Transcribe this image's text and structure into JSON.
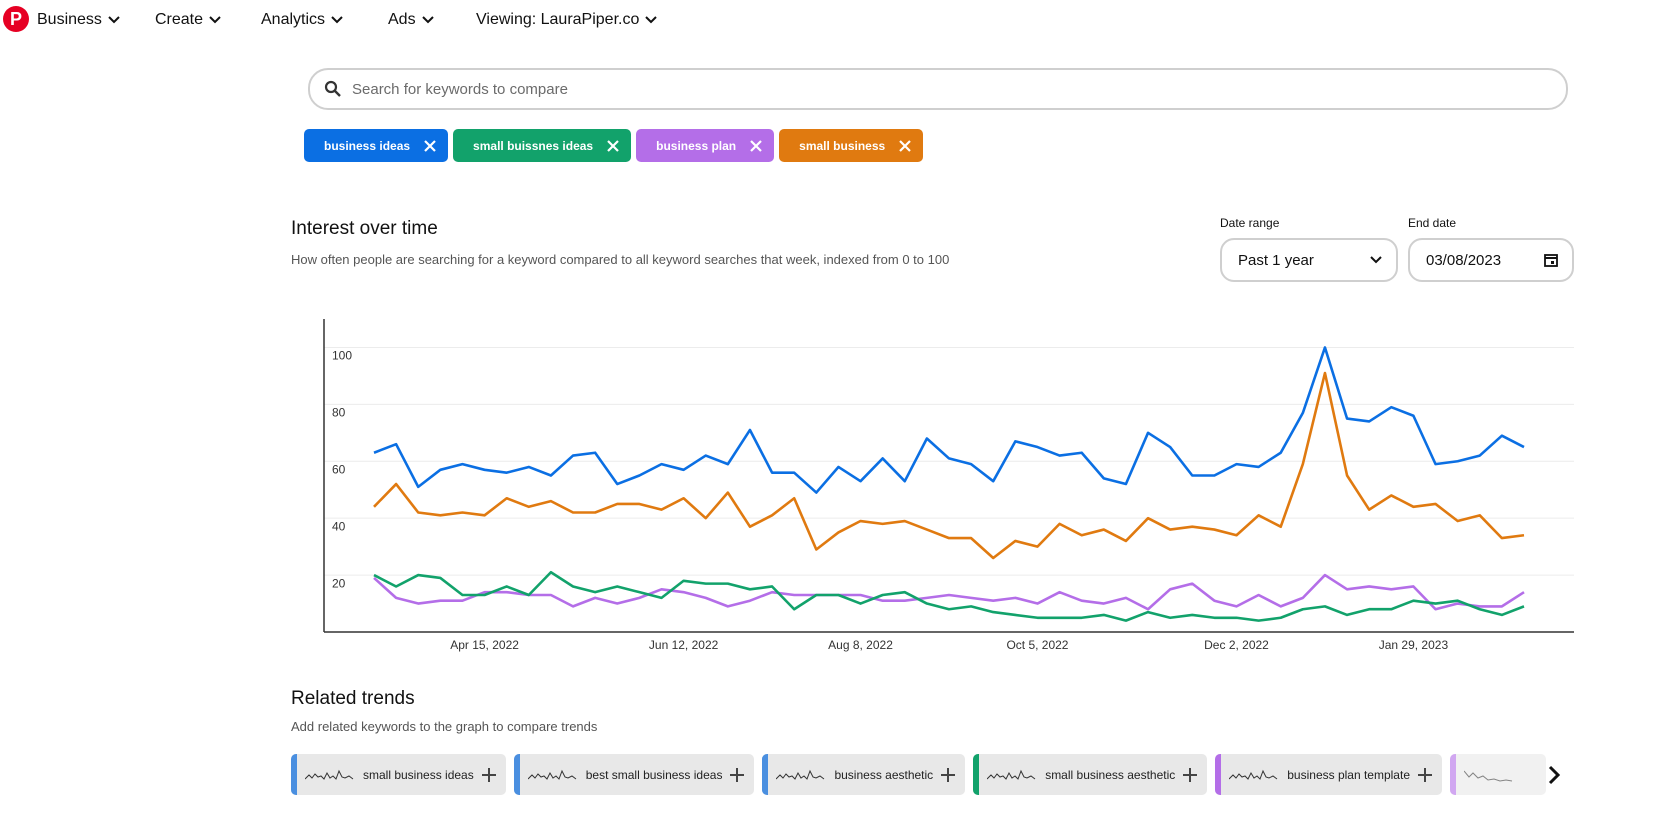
{
  "nav": {
    "items": [
      "Business",
      "Create",
      "Analytics",
      "Ads",
      "Viewing: LauraPiper.co"
    ]
  },
  "search": {
    "placeholder": "Search for keywords to compare"
  },
  "controls": {
    "date_range_label": "Date range",
    "date_range_value": "Past 1 year",
    "end_date_label": "End date",
    "end_date_value": "03/08/2023"
  },
  "chart_data": {
    "type": "line",
    "title": "Interest over time",
    "subtitle": "How often people are searching for a keyword compared to all keyword searches that week, indexed from 0 to 100",
    "categories": [
      null,
      null,
      null,
      null,
      null,
      "Apr 15, 2022",
      null,
      null,
      null,
      null,
      null,
      null,
      null,
      null,
      "Jun 12, 2022",
      null,
      null,
      null,
      null,
      null,
      null,
      null,
      "Aug 8, 2022",
      null,
      null,
      null,
      null,
      null,
      null,
      null,
      "Oct 5, 2022",
      null,
      null,
      null,
      null,
      null,
      null,
      null,
      null,
      "Dec 2, 2022",
      null,
      null,
      null,
      null,
      null,
      null,
      null,
      "Jan 29, 2023",
      null,
      null,
      null,
      null,
      null
    ],
    "ylim": [
      0,
      110
    ],
    "yticks": [
      20,
      40,
      60,
      80,
      100
    ],
    "grid": true,
    "series": [
      {
        "name": "business ideas",
        "color": "#0b6fe3",
        "values": [
          63,
          66,
          51,
          57,
          59,
          57,
          56,
          58,
          55,
          62,
          63,
          52,
          55,
          59,
          57,
          62,
          59,
          71,
          56,
          56,
          49,
          58,
          53,
          61,
          53,
          68,
          61,
          59,
          53,
          67,
          65,
          62,
          63,
          54,
          52,
          70,
          65,
          55,
          55,
          59,
          58,
          63,
          77,
          100,
          75,
          74,
          79,
          76,
          59,
          60,
          62,
          69,
          65
        ]
      },
      {
        "name": "small buissnes ideas",
        "color": "#12a26b",
        "values": [
          20,
          16,
          20,
          19,
          13,
          13,
          16,
          13,
          21,
          16,
          14,
          16,
          14,
          12,
          18,
          17,
          17,
          15,
          16,
          8,
          13,
          13,
          10,
          13,
          14,
          10,
          8,
          9,
          7,
          6,
          5,
          5,
          5,
          6,
          4,
          7,
          5,
          6,
          5,
          5,
          4,
          5,
          8,
          9,
          6,
          8,
          8,
          11,
          10,
          11,
          8,
          6,
          9
        ]
      },
      {
        "name": "business plan",
        "color": "#b46ee8",
        "values": [
          19,
          12,
          10,
          11,
          11,
          14,
          14,
          13,
          13,
          9,
          12,
          10,
          12,
          15,
          14,
          12,
          9,
          11,
          14,
          13,
          13,
          13,
          13,
          11,
          11,
          12,
          13,
          12,
          11,
          12,
          10,
          14,
          11,
          10,
          12,
          8,
          15,
          17,
          11,
          9,
          13,
          9,
          12,
          20,
          15,
          16,
          15,
          16,
          8,
          10,
          9,
          9,
          14
        ]
      },
      {
        "name": "small business",
        "color": "#e07a10",
        "values": [
          44,
          52,
          42,
          41,
          42,
          41,
          47,
          44,
          46,
          42,
          42,
          45,
          45,
          43,
          47,
          40,
          49,
          37,
          41,
          47,
          29,
          35,
          39,
          38,
          39,
          36,
          33,
          33,
          26,
          32,
          30,
          38,
          34,
          36,
          32,
          40,
          36,
          37,
          36,
          34,
          41,
          37,
          59,
          91,
          55,
          43,
          48,
          44,
          45,
          39,
          41,
          33,
          34
        ]
      }
    ]
  },
  "related": {
    "title": "Related trends",
    "subtitle": "Add related keywords to the graph to compare trends",
    "items": [
      {
        "label": "small business ideas",
        "color": "#4a8fe0"
      },
      {
        "label": "best small business ideas",
        "color": "#4a8fe0"
      },
      {
        "label": "business aesthetic",
        "color": "#4a8fe0"
      },
      {
        "label": "small business aesthetic",
        "color": "#12a26b"
      },
      {
        "label": "business plan template",
        "color": "#b46ee8"
      }
    ]
  }
}
